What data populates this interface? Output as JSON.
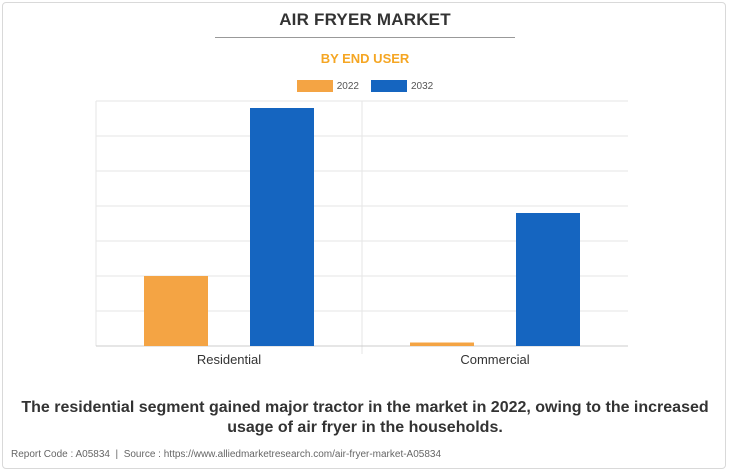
{
  "title": "AIR FRYER MARKET",
  "subtitle": "BY END USER",
  "colors": {
    "accent": "#F5A623",
    "series_2022": "#F4A444",
    "series_2032": "#1565C0",
    "grid": "#e6e6e6",
    "axis": "#cccccc"
  },
  "legend": [
    {
      "label": "2022",
      "color": "#F4A444"
    },
    {
      "label": "2032",
      "color": "#1565C0"
    }
  ],
  "caption": "The residential segment gained major tractor in the market in 2022, owing to the increased usage of air fryer in the households.",
  "footer": {
    "report_code": "Report Code : A05834",
    "separator": "|",
    "source": "Source : https://www.alliedmarketresearch.com/air-fryer-market-A05834"
  },
  "chart_data": {
    "type": "bar",
    "categories": [
      "Residential",
      "Commercial"
    ],
    "series": [
      {
        "name": "2022",
        "values": [
          2.0,
          0.1
        ]
      },
      {
        "name": "2032",
        "values": [
          6.8,
          3.8
        ]
      }
    ],
    "ylim": [
      0,
      7
    ],
    "grid": true,
    "legend_position": "top-center",
    "xlabel": "",
    "ylabel": ""
  }
}
